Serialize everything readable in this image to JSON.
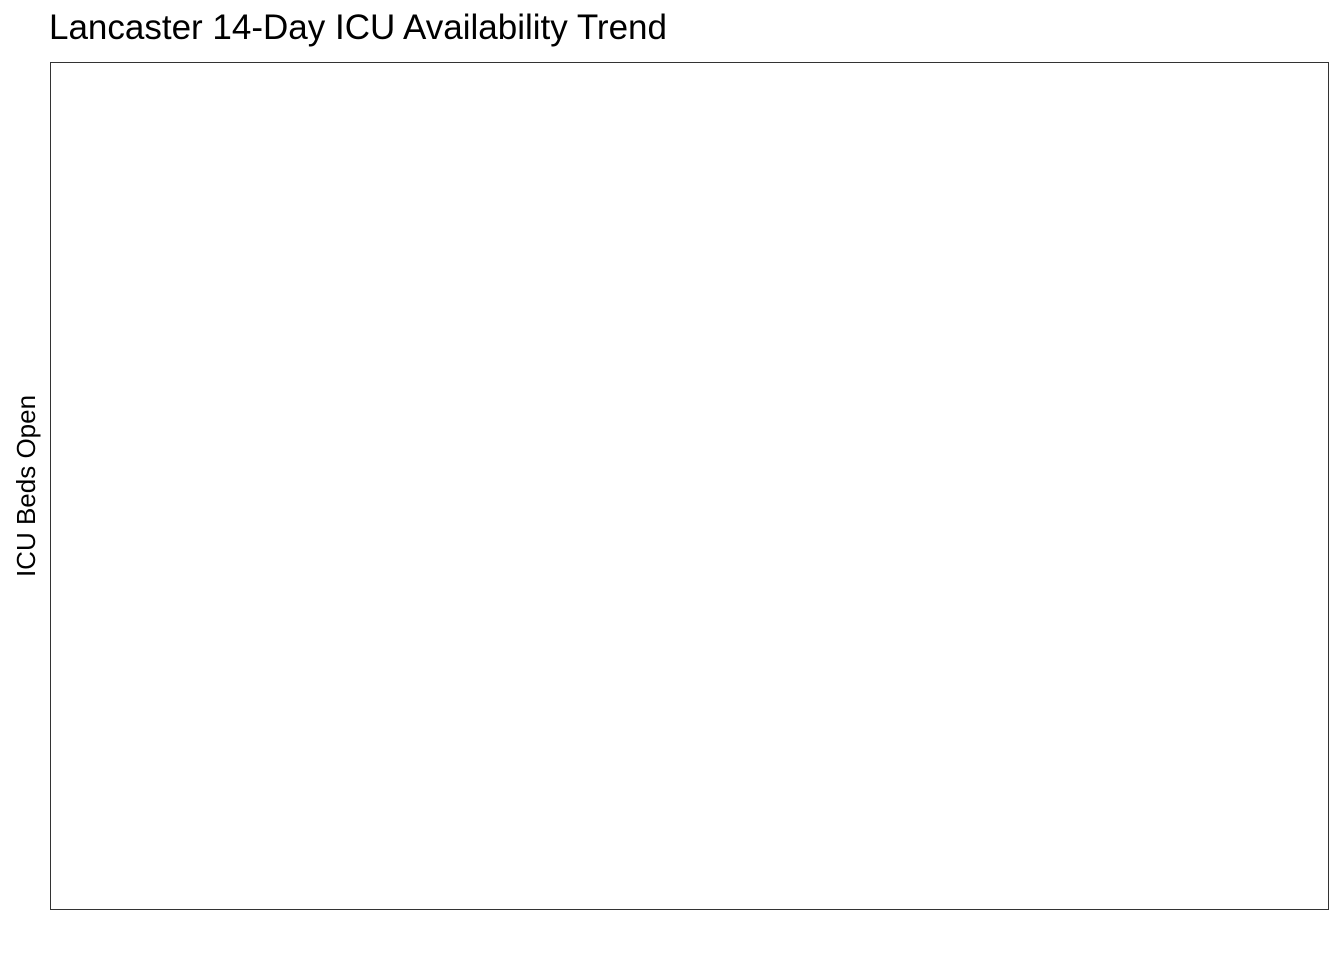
{
  "chart_data": {
    "type": "line",
    "title": "Lancaster 14-Day ICU Availability Trend",
    "xlabel": "",
    "ylabel": "ICU Beds Open",
    "x": [],
    "series": [],
    "grid": false,
    "legend": "none",
    "colors": {
      "background": "#ffffff",
      "panel_border": "#333333",
      "text": "#000000"
    }
  }
}
